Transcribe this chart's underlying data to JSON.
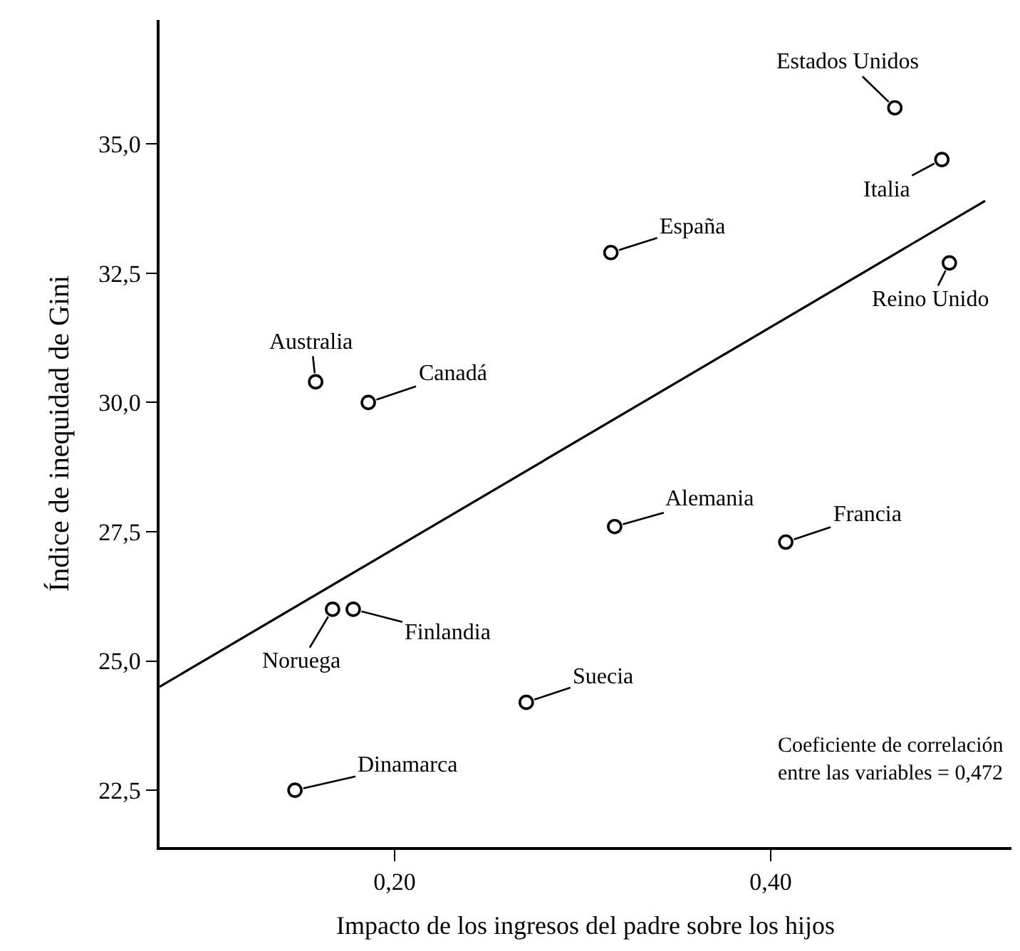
{
  "chart_data": {
    "type": "scatter",
    "xlabel": "Impacto de los ingresos del padre sobre los hijos",
    "ylabel": "Índice de inequidad de Gini",
    "xlim": [
      0.075,
      0.528
    ],
    "ylim": [
      21.4,
      37.4
    ],
    "xticks": [
      {
        "value": 0.2,
        "label": "0,20"
      },
      {
        "value": 0.4,
        "label": "0,40"
      }
    ],
    "yticks": [
      {
        "value": 22.5,
        "label": "22,5"
      },
      {
        "value": 25,
        "label": "25,0"
      },
      {
        "value": 27.5,
        "label": "27,5"
      },
      {
        "value": 30,
        "label": "30,0"
      },
      {
        "value": 32.5,
        "label": "32,5"
      },
      {
        "value": 35,
        "label": "35,0"
      }
    ],
    "series": [
      {
        "marker": "circle",
        "color": "#000000",
        "x": [
          0.466,
          0.491,
          0.315,
          0.495,
          0.158,
          0.186,
          0.317,
          0.408,
          0.167,
          0.178,
          0.27,
          0.147
        ],
        "values": [
          35.7,
          34.7,
          32.9,
          32.7,
          30.4,
          30.0,
          27.6,
          27.3,
          26.0,
          26.0,
          24.2,
          22.5
        ]
      },
      {
        "type": "line",
        "marker": "none",
        "color": "#000000",
        "x": [
          0.075,
          0.514
        ],
        "values": [
          24.5,
          33.9
        ]
      }
    ],
    "annotations": [
      {
        "text": "Estados Unidos",
        "x": 0.466,
        "y": 35.7
      },
      {
        "text": "Italia",
        "x": 0.491,
        "y": 34.7
      },
      {
        "text": "España",
        "x": 0.315,
        "y": 32.9
      },
      {
        "text": "Reino Unido",
        "x": 0.495,
        "y": 32.7
      },
      {
        "text": "Australia",
        "x": 0.158,
        "y": 30.4
      },
      {
        "text": "Canadá",
        "x": 0.186,
        "y": 30.0
      },
      {
        "text": "Alemania",
        "x": 0.317,
        "y": 27.6
      },
      {
        "text": "Francia",
        "x": 0.408,
        "y": 27.3
      },
      {
        "text": "Noruega",
        "x": 0.167,
        "y": 26.0
      },
      {
        "text": "Finlandia",
        "x": 0.178,
        "y": 26.0
      },
      {
        "text": "Suecia",
        "x": 0.27,
        "y": 24.2
      },
      {
        "text": "Dinamarca",
        "x": 0.147,
        "y": 22.5
      },
      "Coeficiente de correlación\nentre las variables = 0,472"
    ]
  }
}
